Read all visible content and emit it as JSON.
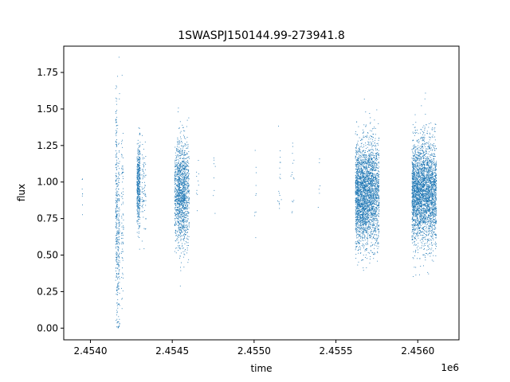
{
  "chart_data": {
    "type": "scatter",
    "title": "1SWASPJ150144.99-273941.8",
    "xlabel": "time",
    "ylabel": "flux",
    "x_offset_label": "1e6",
    "xlim": [
      2453835,
      2456250
    ],
    "ylim": [
      -0.08,
      1.93
    ],
    "x_ticks": [
      2453998,
      2454498,
      2454998,
      2455498,
      2455998
    ],
    "x_tick_labels": [
      "2.4540",
      "2.4545",
      "2.4550",
      "2.4555",
      "2.4560"
    ],
    "y_ticks": [
      0.0,
      0.25,
      0.5,
      0.75,
      1.0,
      1.25,
      1.5,
      1.75
    ],
    "y_tick_labels": [
      "0.00",
      "0.25",
      "0.50",
      "0.75",
      "1.00",
      "1.25",
      "1.50",
      "1.75"
    ],
    "grid": false,
    "marker_color": "#1f77b4",
    "series": [
      {
        "observing_seasons": [
          {
            "x_range": [
              2453945,
              2453948
            ],
            "y_center": 0.97,
            "y_spread": 0.12,
            "count": 8
          },
          {
            "x_range": [
              2454150,
              2454158
            ],
            "y_center": 0.9,
            "y_spread": 0.35,
            "count": 180
          },
          {
            "x_range": [
              2454158,
              2454175
            ],
            "y_center": 0.6,
            "y_spread": 0.35,
            "count": 220
          },
          {
            "x_range": [
              2454185,
              2454198
            ],
            "y_center": 0.75,
            "y_spread": 0.3,
            "count": 80
          },
          {
            "x_range": [
              2454280,
              2454300
            ],
            "y_center": 0.97,
            "y_spread": 0.15,
            "count": 450
          },
          {
            "x_range": [
              2454310,
              2454335
            ],
            "y_center": 0.97,
            "y_spread": 0.15,
            "count": 80
          },
          {
            "x_range": [
              2454510,
              2454530
            ],
            "y_center": 0.93,
            "y_spread": 0.17,
            "count": 250
          },
          {
            "x_range": [
              2454530,
              2454575
            ],
            "y_center": 0.93,
            "y_spread": 0.17,
            "count": 900
          },
          {
            "x_range": [
              2454575,
              2454600
            ],
            "y_center": 0.93,
            "y_spread": 0.18,
            "count": 250
          },
          {
            "x_range": [
              2454640,
              2454660
            ],
            "y_center": 0.98,
            "y_spread": 0.1,
            "count": 10
          },
          {
            "x_range": [
              2454745,
              2454760
            ],
            "y_center": 0.98,
            "y_spread": 0.12,
            "count": 8
          },
          {
            "x_range": [
              2454998,
              2455010
            ],
            "y_center": 0.95,
            "y_spread": 0.2,
            "count": 10
          },
          {
            "x_range": [
              2455140,
              2455165
            ],
            "y_center": 1.0,
            "y_spread": 0.15,
            "count": 18
          },
          {
            "x_range": [
              2455220,
              2455240
            ],
            "y_center": 1.0,
            "y_spread": 0.15,
            "count": 15
          },
          {
            "x_range": [
              2455380,
              2455400
            ],
            "y_center": 1.0,
            "y_spread": 0.15,
            "count": 6
          },
          {
            "x_range": [
              2455615,
              2455680
            ],
            "y_center": 0.92,
            "y_spread": 0.17,
            "count": 1500
          },
          {
            "x_range": [
              2455680,
              2455725
            ],
            "y_center": 0.93,
            "y_spread": 0.17,
            "count": 900
          },
          {
            "x_range": [
              2455725,
              2455760
            ],
            "y_center": 0.92,
            "y_spread": 0.19,
            "count": 500
          },
          {
            "x_range": [
              2455960,
              2455995
            ],
            "y_center": 0.93,
            "y_spread": 0.17,
            "count": 800
          },
          {
            "x_range": [
              2455995,
              2456070
            ],
            "y_center": 0.93,
            "y_spread": 0.18,
            "count": 1600
          },
          {
            "x_range": [
              2456070,
              2456110
            ],
            "y_center": 0.93,
            "y_spread": 0.17,
            "count": 700
          }
        ]
      }
    ]
  }
}
